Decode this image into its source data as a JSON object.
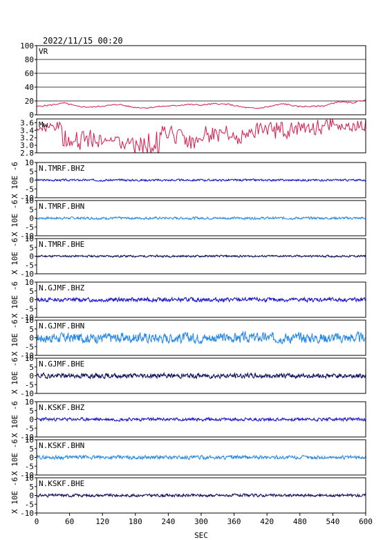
{
  "header": {
    "timestamp": "2022/11/15 00:20"
  },
  "colors": {
    "vr_line": "#d8174a",
    "mw_line": "#d8174a",
    "bhz": "#1a1ad0",
    "bhn": "#2a8ae6",
    "bhe": "#10105e",
    "frame": "#000000",
    "grid": "#000000"
  },
  "chart_data": [
    {
      "type": "line",
      "title": "VR",
      "ylim": [
        0,
        100
      ],
      "yticks": [
        "0",
        "20",
        "40",
        "60",
        "80",
        "100"
      ],
      "grid": true,
      "x": [
        0,
        25,
        50,
        75,
        100,
        125,
        150,
        175,
        200,
        225,
        250,
        275,
        300,
        325,
        350,
        375,
        400,
        425,
        450,
        475,
        500,
        525,
        550,
        575,
        600
      ],
      "values": [
        12,
        14,
        17,
        12,
        11,
        13,
        15,
        11,
        10,
        12,
        13,
        15,
        14,
        16,
        15,
        11,
        9,
        12,
        16,
        12,
        12,
        13,
        19,
        17,
        22
      ]
    },
    {
      "type": "line",
      "title": "Mw",
      "ylim": [
        2.8,
        3.7
      ],
      "yticks": [
        "2.8",
        "3.0",
        "3.2",
        "3.4",
        "3.6"
      ],
      "x": [
        0,
        25,
        50,
        75,
        100,
        125,
        150,
        175,
        200,
        225,
        250,
        275,
        300,
        325,
        350,
        375,
        400,
        425,
        450,
        475,
        500,
        525,
        550,
        575,
        600
      ],
      "values": [
        3.4,
        3.5,
        3.1,
        3.3,
        3.0,
        3.2,
        3.0,
        3.1,
        2.9,
        3.4,
        3.3,
        3.0,
        3.2,
        3.4,
        3.1,
        3.3,
        3.4,
        3.5,
        3.3,
        3.5,
        3.4,
        3.6,
        3.5,
        3.5,
        3.7
      ]
    },
    {
      "type": "line",
      "title": "N.TMRF.BHZ",
      "ylabel": "X 10E -6",
      "ylim": [
        -10,
        10
      ],
      "yticks": [
        "-10",
        "-5",
        "0",
        "5",
        "10"
      ],
      "color_key": "bhz",
      "amplitude": 0.5,
      "seed": 3
    },
    {
      "type": "line",
      "title": "N.TMRF.BHN",
      "ylabel": "X 10E -6",
      "ylim": [
        -10,
        10
      ],
      "yticks": [
        "-10",
        "-5",
        "0",
        "5",
        "10"
      ],
      "color_key": "bhn",
      "amplitude": 0.6,
      "seed": 7
    },
    {
      "type": "line",
      "title": "N.TMRF.BHE",
      "ylabel": "X 10E -6",
      "ylim": [
        -10,
        10
      ],
      "yticks": [
        "-10",
        "-5",
        "0",
        "5",
        "10"
      ],
      "color_key": "bhe",
      "amplitude": 0.5,
      "seed": 11
    },
    {
      "type": "line",
      "title": "N.GJMF.BHZ",
      "ylabel": "X 10E -6",
      "ylim": [
        -10,
        10
      ],
      "yticks": [
        "-10",
        "-5",
        "0",
        "5",
        "10"
      ],
      "color_key": "bhz",
      "amplitude": 1.0,
      "seed": 13
    },
    {
      "type": "line",
      "title": "N.GJMF.BHN",
      "ylabel": "X 10E -6",
      "ylim": [
        -10,
        10
      ],
      "yticks": [
        "-10",
        "-5",
        "0",
        "5",
        "10"
      ],
      "color_key": "bhn",
      "amplitude": 2.5,
      "seed": 17
    },
    {
      "type": "line",
      "title": "N.GJMF.BHE",
      "ylabel": "X 10E -6",
      "ylim": [
        -10,
        10
      ],
      "yticks": [
        "-10",
        "-5",
        "0",
        "5",
        "10"
      ],
      "color_key": "bhe",
      "amplitude": 1.2,
      "seed": 19
    },
    {
      "type": "line",
      "title": "N.KSKF.BHZ",
      "ylabel": "X 10E -6",
      "ylim": [
        -10,
        10
      ],
      "yticks": [
        "-10",
        "-5",
        "0",
        "5",
        "10"
      ],
      "color_key": "bhz",
      "amplitude": 0.8,
      "seed": 23
    },
    {
      "type": "line",
      "title": "N.KSKF.BHN",
      "ylabel": "X 10E -6",
      "ylim": [
        -10,
        10
      ],
      "yticks": [
        "-10",
        "-5",
        "0",
        "5",
        "10"
      ],
      "color_key": "bhn",
      "amplitude": 0.9,
      "seed": 29
    },
    {
      "type": "line",
      "title": "N.KSKF.BHE",
      "ylabel": "X 10E -6",
      "ylim": [
        -10,
        10
      ],
      "yticks": [
        "-10",
        "-5",
        "0",
        "5",
        "10"
      ],
      "color_key": "bhe",
      "amplitude": 0.7,
      "seed": 31
    }
  ],
  "xaxis": {
    "xlabel": "SEC",
    "xlim": [
      0,
      600
    ],
    "ticks": [
      "0",
      "60",
      "120",
      "180",
      "240",
      "300",
      "360",
      "420",
      "480",
      "540",
      "600"
    ]
  }
}
